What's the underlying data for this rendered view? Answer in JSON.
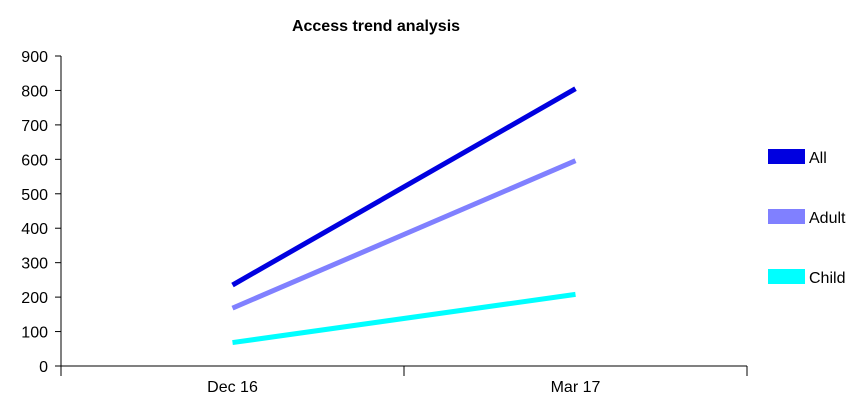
{
  "chart_data": {
    "type": "line",
    "title": "Access trend analysis",
    "xlabel": "",
    "ylabel": "",
    "categories": [
      "Dec 16",
      "Mar 17"
    ],
    "y_ticks": [
      "0",
      "100",
      "200",
      "300",
      "400",
      "500",
      "600",
      "700",
      "800",
      "900"
    ],
    "ylim": [
      0,
      900
    ],
    "grid": false,
    "legend_position": "right",
    "series": [
      {
        "name": "All",
        "values": [
          235,
          805
        ],
        "color": "#0000e0"
      },
      {
        "name": "Adult",
        "values": [
          168,
          596
        ],
        "color": "#8080ff"
      },
      {
        "name": "Child",
        "values": [
          68,
          208
        ],
        "color": "#00ffff"
      }
    ]
  }
}
